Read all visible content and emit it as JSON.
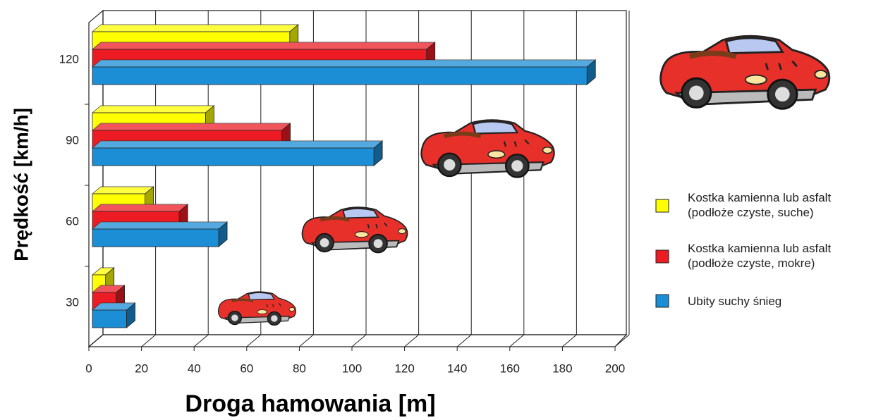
{
  "chart_data": {
    "type": "bar3d-horizontal",
    "x_label": "Droga hamowania [m]",
    "y_label": "Prędkość [km/h]",
    "categories": [
      "30",
      "60",
      "90",
      "120"
    ],
    "series": [
      {
        "name": "Kostka kamienna lub asfalt (podłoże czyste, suche)",
        "color": "#ffff00",
        "values": [
          5,
          20,
          43,
          75
        ]
      },
      {
        "name": "Kostka kamienna lub asfalt (podłoże czyste, mokre)",
        "color": "#ed1c24",
        "values": [
          9,
          33,
          72,
          127
        ]
      },
      {
        "name": "Ubity suchy śnieg",
        "color": "#1b8ed6",
        "values": [
          13,
          48,
          107,
          188
        ]
      }
    ],
    "xlim": [
      0,
      200
    ],
    "xticks": [
      0,
      20,
      40,
      60,
      80,
      100,
      120,
      140,
      160,
      180,
      200
    ],
    "grid": true
  }
}
